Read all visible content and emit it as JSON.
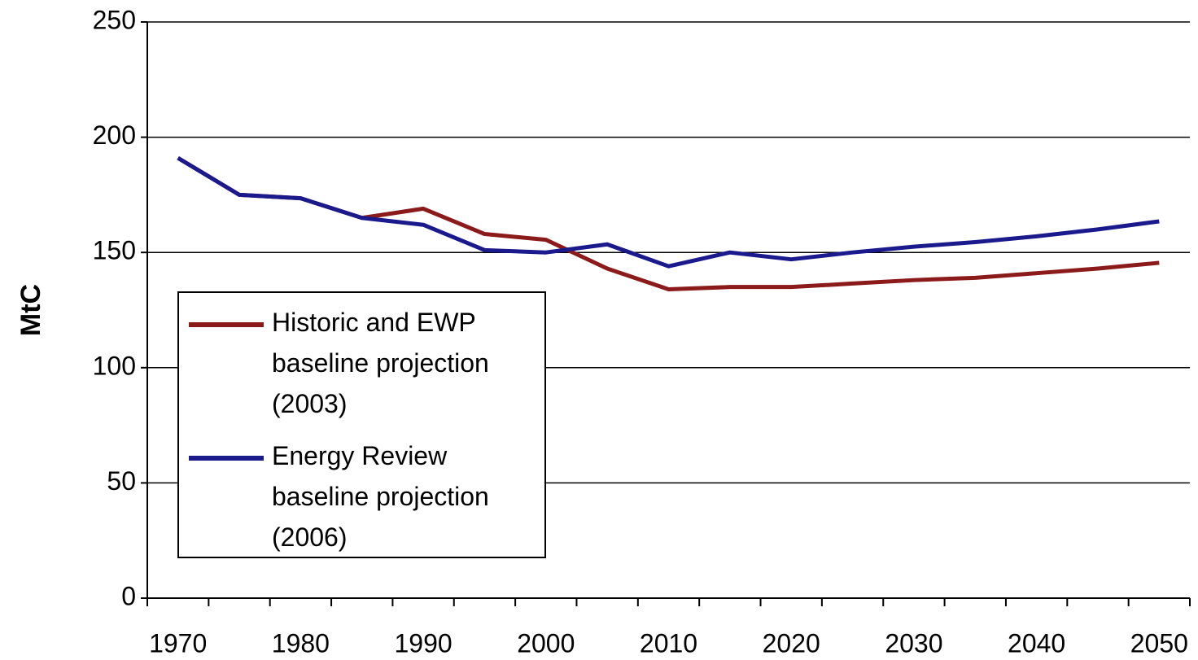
{
  "chart_data": {
    "type": "line",
    "y_label": "MtC",
    "categories": [
      "1970",
      null,
      "1980",
      null,
      "1990",
      null,
      "2000",
      null,
      "2010",
      null,
      "2020",
      null,
      "2030",
      null,
      "2040",
      null,
      "2050"
    ],
    "series": [
      {
        "name": "Historic and EWP baseline projection (2003)",
        "color": "#8b1a1a",
        "values": [
          191,
          175,
          173.5,
          165,
          169,
          158,
          155.5,
          143,
          134,
          135,
          135,
          136.5,
          138,
          139,
          141,
          143,
          145.5
        ]
      },
      {
        "name": "Energy Review baseline projection (2006)",
        "color": "#1a1a8c",
        "values": [
          191,
          175,
          173.5,
          165,
          162,
          151,
          150,
          153.5,
          144,
          150,
          147,
          150,
          152.5,
          154.5,
          157,
          160,
          163.5
        ]
      }
    ],
    "ylim": [
      0,
      250
    ],
    "yticks": [
      0,
      50,
      100,
      150,
      200,
      250
    ],
    "grid": true
  }
}
